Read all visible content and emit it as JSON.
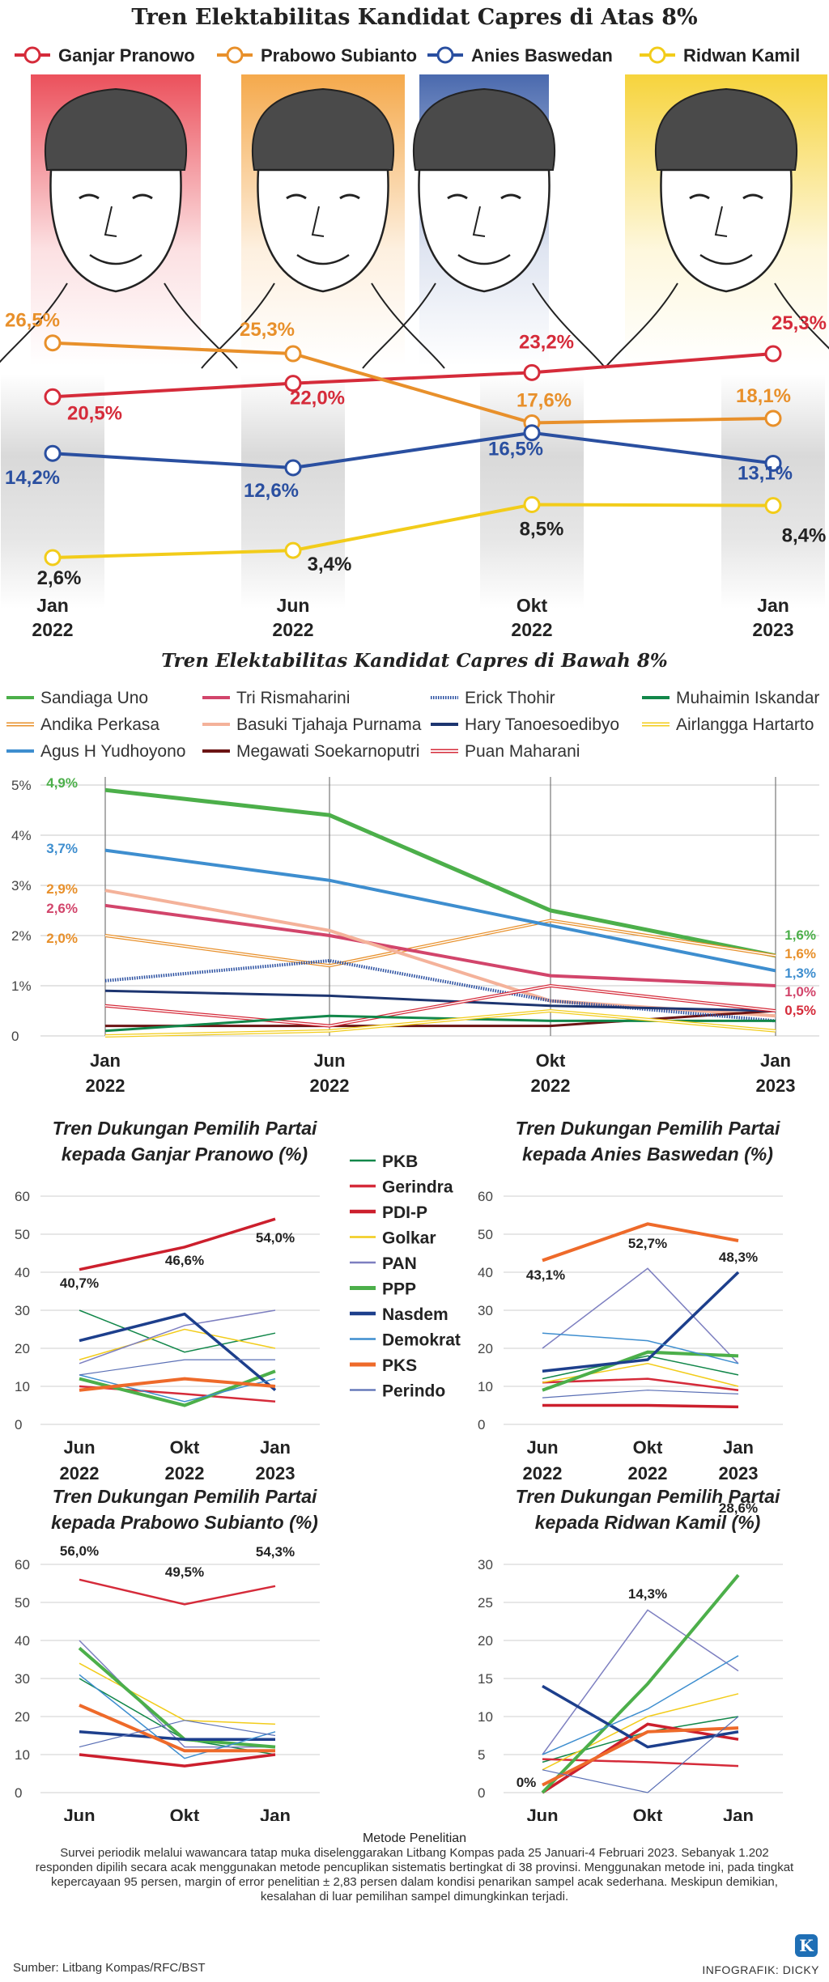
{
  "main_title": "Tren Elektabilitas Kandidat Capres di Atas 8%",
  "subtitle_below": "Tren Elektabilitas Kandidat Capres di Bawah 8%",
  "methodology": {
    "heading": "Metode Penelitian",
    "text": "Survei periodik melalui wawancara tatap muka diselenggarakan Litbang Kompas pada 25 Januari-4 Februari 2023. Sebanyak 1.202 responden dipilih secara acak menggunakan metode pencuplikan sistematis bertingkat di 38 provinsi. Menggunakan metode ini, pada tingkat kepercayaan 95 persen, margin of error penelitian ± 2,83 persen dalam kondisi penarikan sampel acak sederhana. Meskipun demikian, kesalahan di luar pemilihan sampel dimungkinkan terjadi."
  },
  "source": "Sumber: Litbang Kompas/RFC/BST",
  "credit": "INFOGRAFIK: DICKY",
  "logo_letter": "K",
  "chart_data": [
    {
      "type": "line",
      "title": "Tren Elektabilitas Kandidat Capres di Atas 8%",
      "categories": [
        "Jan 2022",
        "Jun 2022",
        "Okt 2022",
        "Jan 2023"
      ],
      "series": [
        {
          "name": "Ganjar Pranowo",
          "color": "#d52b3a",
          "values": [
            20.5,
            22.0,
            23.2,
            25.3
          ],
          "labels": [
            "20,5%",
            "22,0%",
            "23,2%",
            "25,3%"
          ]
        },
        {
          "name": "Prabowo Subianto",
          "color": "#e8902b",
          "values": [
            26.5,
            25.3,
            17.6,
            18.1
          ],
          "labels": [
            "26,5%",
            "25,3%",
            "17,6%",
            "18,1%"
          ]
        },
        {
          "name": "Anies Baswedan",
          "color": "#2a4fa0",
          "values": [
            14.2,
            12.6,
            16.5,
            13.1
          ],
          "labels": [
            "14,2%",
            "12,6%",
            "16,5%",
            "13,1%"
          ]
        },
        {
          "name": "Ridwan Kamil",
          "color": "#f2cc1a",
          "values": [
            2.6,
            3.4,
            8.5,
            8.4
          ],
          "labels": [
            "2,6%",
            "3,4%",
            "8,5%",
            "8,4%"
          ]
        }
      ],
      "x_ticks": [
        [
          "Jan",
          "2022"
        ],
        [
          "Jun",
          "2022"
        ],
        [
          "Okt",
          "2022"
        ],
        [
          "Jan",
          "2023"
        ]
      ]
    },
    {
      "type": "line",
      "title": "Tren Elektabilitas Kandidat Capres di Bawah 8%",
      "categories": [
        "Jan 2022",
        "Jun 2022",
        "Okt 2022",
        "Jan 2023"
      ],
      "ylim": [
        0,
        5
      ],
      "y_ticks": [
        "0",
        "1%",
        "2%",
        "3%",
        "4%",
        "5%"
      ],
      "x_ticks": [
        [
          "Jan",
          "2022"
        ],
        [
          "Jun",
          "2022"
        ],
        [
          "Okt",
          "2022"
        ],
        [
          "Jan",
          "2023"
        ]
      ],
      "series": [
        {
          "name": "Sandiaga Uno",
          "color": "#4caf4a",
          "style": "solid",
          "values": [
            4.9,
            4.4,
            2.5,
            1.6
          ]
        },
        {
          "name": "Andika Perkasa",
          "color": "#e8902b",
          "style": "double",
          "values": [
            2.0,
            1.4,
            2.3,
            1.6
          ]
        },
        {
          "name": "Agus H Yudhoyono",
          "color": "#3e8ecf",
          "style": "solid",
          "values": [
            3.7,
            3.1,
            2.2,
            1.3
          ]
        },
        {
          "name": "Tri Rismaharini",
          "color": "#d2456b",
          "style": "solid",
          "values": [
            2.6,
            2.0,
            1.2,
            1.0
          ]
        },
        {
          "name": "Basuki Tjahaja Purnama",
          "color": "#f4b29a",
          "style": "solid",
          "values": [
            2.9,
            2.1,
            0.7,
            0.4
          ]
        },
        {
          "name": "Megawati Soekarnoputri",
          "color": "#6b1414",
          "style": "solid",
          "values": [
            0.2,
            0.2,
            0.2,
            0.5
          ]
        },
        {
          "name": "Erick Thohir",
          "color": "#2a4fa0",
          "style": "dotted",
          "values": [
            1.1,
            1.5,
            0.7,
            0.3
          ]
        },
        {
          "name": "Hary Tanoesoedibyo",
          "color": "#1d3570",
          "style": "solid",
          "values": [
            0.9,
            0.8,
            0.6,
            0.5
          ]
        },
        {
          "name": "Puan Maharani",
          "color": "#d52b3a",
          "style": "double",
          "values": [
            0.6,
            0.2,
            1.0,
            0.5
          ]
        },
        {
          "name": "Muhaimin Iskandar",
          "color": "#12874a",
          "style": "solid",
          "values": [
            0.1,
            0.4,
            0.3,
            0.3
          ]
        },
        {
          "name": "Airlangga Hartarto",
          "color": "#f2cc1a",
          "style": "double",
          "values": [
            0.0,
            0.1,
            0.5,
            0.1
          ]
        }
      ],
      "data_labels": [
        {
          "text": "4,9%",
          "color": "#4caf4a"
        },
        {
          "text": "3,7%",
          "color": "#3e8ecf"
        },
        {
          "text": "2,9%",
          "color": "#e8902b"
        },
        {
          "text": "2,6%",
          "color": "#d2456b"
        },
        {
          "text": "2,0%",
          "color": "#e8902b"
        },
        {
          "text": "1,6%",
          "color": "#4caf4a"
        },
        {
          "text": "1,6%",
          "color": "#e8902b"
        },
        {
          "text": "1,3%",
          "color": "#3e8ecf"
        },
        {
          "text": "1,0%",
          "color": "#d2456b"
        },
        {
          "text": "0,5%",
          "color": "#d52b3a"
        }
      ]
    },
    {
      "type": "line",
      "title_line1": "Tren Dukungan Pemilih Partai",
      "title_line2": "kepada Ganjar Pranowo (%)",
      "categories": [
        "Jun 2022",
        "Okt 2022",
        "Jan 2023"
      ],
      "ylim": [
        0,
        60
      ],
      "y_ticks": [
        "0",
        "10",
        "20",
        "30",
        "40",
        "50",
        "60"
      ],
      "x_ticks": [
        [
          "Jun",
          "2022"
        ],
        [
          "Okt",
          "2022"
        ],
        [
          "Jan",
          "2023"
        ]
      ],
      "series": [
        {
          "name": "PKB",
          "values": [
            30,
            19,
            24
          ]
        },
        {
          "name": "Gerindra",
          "values": [
            10,
            8,
            6
          ]
        },
        {
          "name": "PDI-P",
          "values": [
            40.7,
            46.6,
            54.0
          ]
        },
        {
          "name": "Golkar",
          "values": [
            17,
            25,
            20
          ]
        },
        {
          "name": "PAN",
          "values": [
            16,
            26,
            30
          ]
        },
        {
          "name": "PPP",
          "values": [
            12,
            5,
            14
          ]
        },
        {
          "name": "Nasdem",
          "values": [
            22,
            29,
            9
          ]
        },
        {
          "name": "Demokrat",
          "values": [
            13,
            6,
            12
          ]
        },
        {
          "name": "PKS",
          "values": [
            9,
            12,
            10
          ]
        },
        {
          "name": "Perindo",
          "values": [
            13,
            17,
            17
          ]
        }
      ],
      "data_labels": [
        "40,7%",
        "46,6%",
        "54,0%"
      ]
    },
    {
      "type": "line",
      "title_line1": "Tren Dukungan Pemilih Partai",
      "title_line2": "kepada Anies Baswedan (%)",
      "categories": [
        "Jun 2022",
        "Okt 2022",
        "Jan 2023"
      ],
      "ylim": [
        0,
        60
      ],
      "y_ticks": [
        "0",
        "10",
        "20",
        "30",
        "40",
        "50",
        "60"
      ],
      "x_ticks": [
        [
          "Jun",
          "2022"
        ],
        [
          "Okt",
          "2022"
        ],
        [
          "Jan",
          "2023"
        ]
      ],
      "series": [
        {
          "name": "PKB",
          "values": [
            12,
            18,
            13
          ]
        },
        {
          "name": "Gerindra",
          "values": [
            11,
            12,
            9
          ]
        },
        {
          "name": "PDI-P",
          "values": [
            5,
            5,
            4.6
          ]
        },
        {
          "name": "Golkar",
          "values": [
            11,
            16,
            10
          ]
        },
        {
          "name": "PAN",
          "values": [
            20,
            41,
            16
          ]
        },
        {
          "name": "PPP",
          "values": [
            9,
            19,
            18
          ]
        },
        {
          "name": "Nasdem",
          "values": [
            14,
            17,
            40
          ]
        },
        {
          "name": "Demokrat",
          "values": [
            24,
            22,
            16
          ]
        },
        {
          "name": "PKS",
          "values": [
            43.1,
            52.7,
            48.3
          ]
        },
        {
          "name": "Perindo",
          "values": [
            7,
            9,
            8
          ]
        }
      ],
      "data_labels": [
        "43,1%",
        "52,7%",
        "48,3%"
      ]
    },
    {
      "type": "line",
      "title_line1": "Tren Dukungan Pemilih Partai",
      "title_line2": "kepada Prabowo Subianto (%)",
      "categories": [
        "Jun 2022",
        "Okt 2022",
        "Jan 2023"
      ],
      "ylim": [
        0,
        60
      ],
      "y_ticks": [
        "0",
        "10",
        "20",
        "30",
        "40",
        "50",
        "60"
      ],
      "x_ticks": [
        [
          "Jun",
          "2022"
        ],
        [
          "Okt",
          "2022"
        ],
        [
          "Jan",
          "2023"
        ]
      ],
      "series": [
        {
          "name": "PKB",
          "values": [
            30,
            14,
            10
          ]
        },
        {
          "name": "Gerindra",
          "values": [
            56.0,
            49.5,
            54.3
          ]
        },
        {
          "name": "PDI-P",
          "values": [
            10,
            7,
            10
          ]
        },
        {
          "name": "Golkar",
          "values": [
            34,
            19,
            18
          ]
        },
        {
          "name": "PAN",
          "values": [
            40,
            12,
            12
          ]
        },
        {
          "name": "PPP",
          "values": [
            38,
            14,
            12
          ]
        },
        {
          "name": "Nasdem",
          "values": [
            16,
            14,
            14
          ]
        },
        {
          "name": "Demokrat",
          "values": [
            31,
            9,
            16
          ]
        },
        {
          "name": "PKS",
          "values": [
            23,
            11,
            11
          ]
        },
        {
          "name": "Perindo",
          "values": [
            12,
            19,
            15
          ]
        }
      ],
      "data_labels": [
        "56,0%",
        "49,5%",
        "54,3%"
      ]
    },
    {
      "type": "line",
      "title_line1": "Tren Dukungan Pemilih Partai",
      "title_line2": "kepada Ridwan Kamil (%)",
      "categories": [
        "Jun 2022",
        "Okt 2022",
        "Jan 2023"
      ],
      "ylim": [
        0,
        30
      ],
      "y_ticks": [
        "0",
        "5",
        "10",
        "15",
        "20",
        "25",
        "30"
      ],
      "x_ticks": [
        [
          "Jun",
          "2022"
        ],
        [
          "Okt",
          "2022"
        ],
        [
          "Jan",
          "2023"
        ]
      ],
      "series": [
        {
          "name": "PKB",
          "values": [
            4,
            8,
            10
          ]
        },
        {
          "name": "Gerindra",
          "values": [
            4.4,
            4.0,
            3.5
          ]
        },
        {
          "name": "PDI-P",
          "values": [
            0,
            9,
            7
          ]
        },
        {
          "name": "Golkar",
          "values": [
            3,
            10,
            13
          ]
        },
        {
          "name": "PAN",
          "values": [
            5,
            24,
            16
          ]
        },
        {
          "name": "PPP",
          "values": [
            0,
            14.3,
            28.6
          ]
        },
        {
          "name": "Nasdem",
          "values": [
            14,
            6,
            8
          ]
        },
        {
          "name": "Demokrat",
          "values": [
            5,
            11,
            18
          ]
        },
        {
          "name": "PKS",
          "values": [
            1,
            8,
            8.5
          ]
        },
        {
          "name": "Perindo",
          "values": [
            3,
            0,
            10
          ]
        }
      ],
      "data_labels": [
        "0%",
        "14,3%",
        "28,6%"
      ]
    }
  ],
  "party_legend": [
    {
      "name": "PKB",
      "color": "#12874a",
      "width": 1.5
    },
    {
      "name": "Gerindra",
      "color": "#d52b3a",
      "width": 2.5
    },
    {
      "name": "PDI-P",
      "color": "#cc1f2d",
      "width": 3.5
    },
    {
      "name": "Golkar",
      "color": "#f2cc1a",
      "width": 1.5
    },
    {
      "name": "PAN",
      "color": "#7d7fc0",
      "width": 1.5
    },
    {
      "name": "PPP",
      "color": "#4caf4a",
      "width": 4
    },
    {
      "name": "Nasdem",
      "color": "#1d3f8c",
      "width": 3.5
    },
    {
      "name": "Demokrat",
      "color": "#3e8ecf",
      "width": 1.5
    },
    {
      "name": "PKS",
      "color": "#ee6a2a",
      "width": 4
    },
    {
      "name": "Perindo",
      "color": "#5a6fb5",
      "width": 1.2
    }
  ]
}
